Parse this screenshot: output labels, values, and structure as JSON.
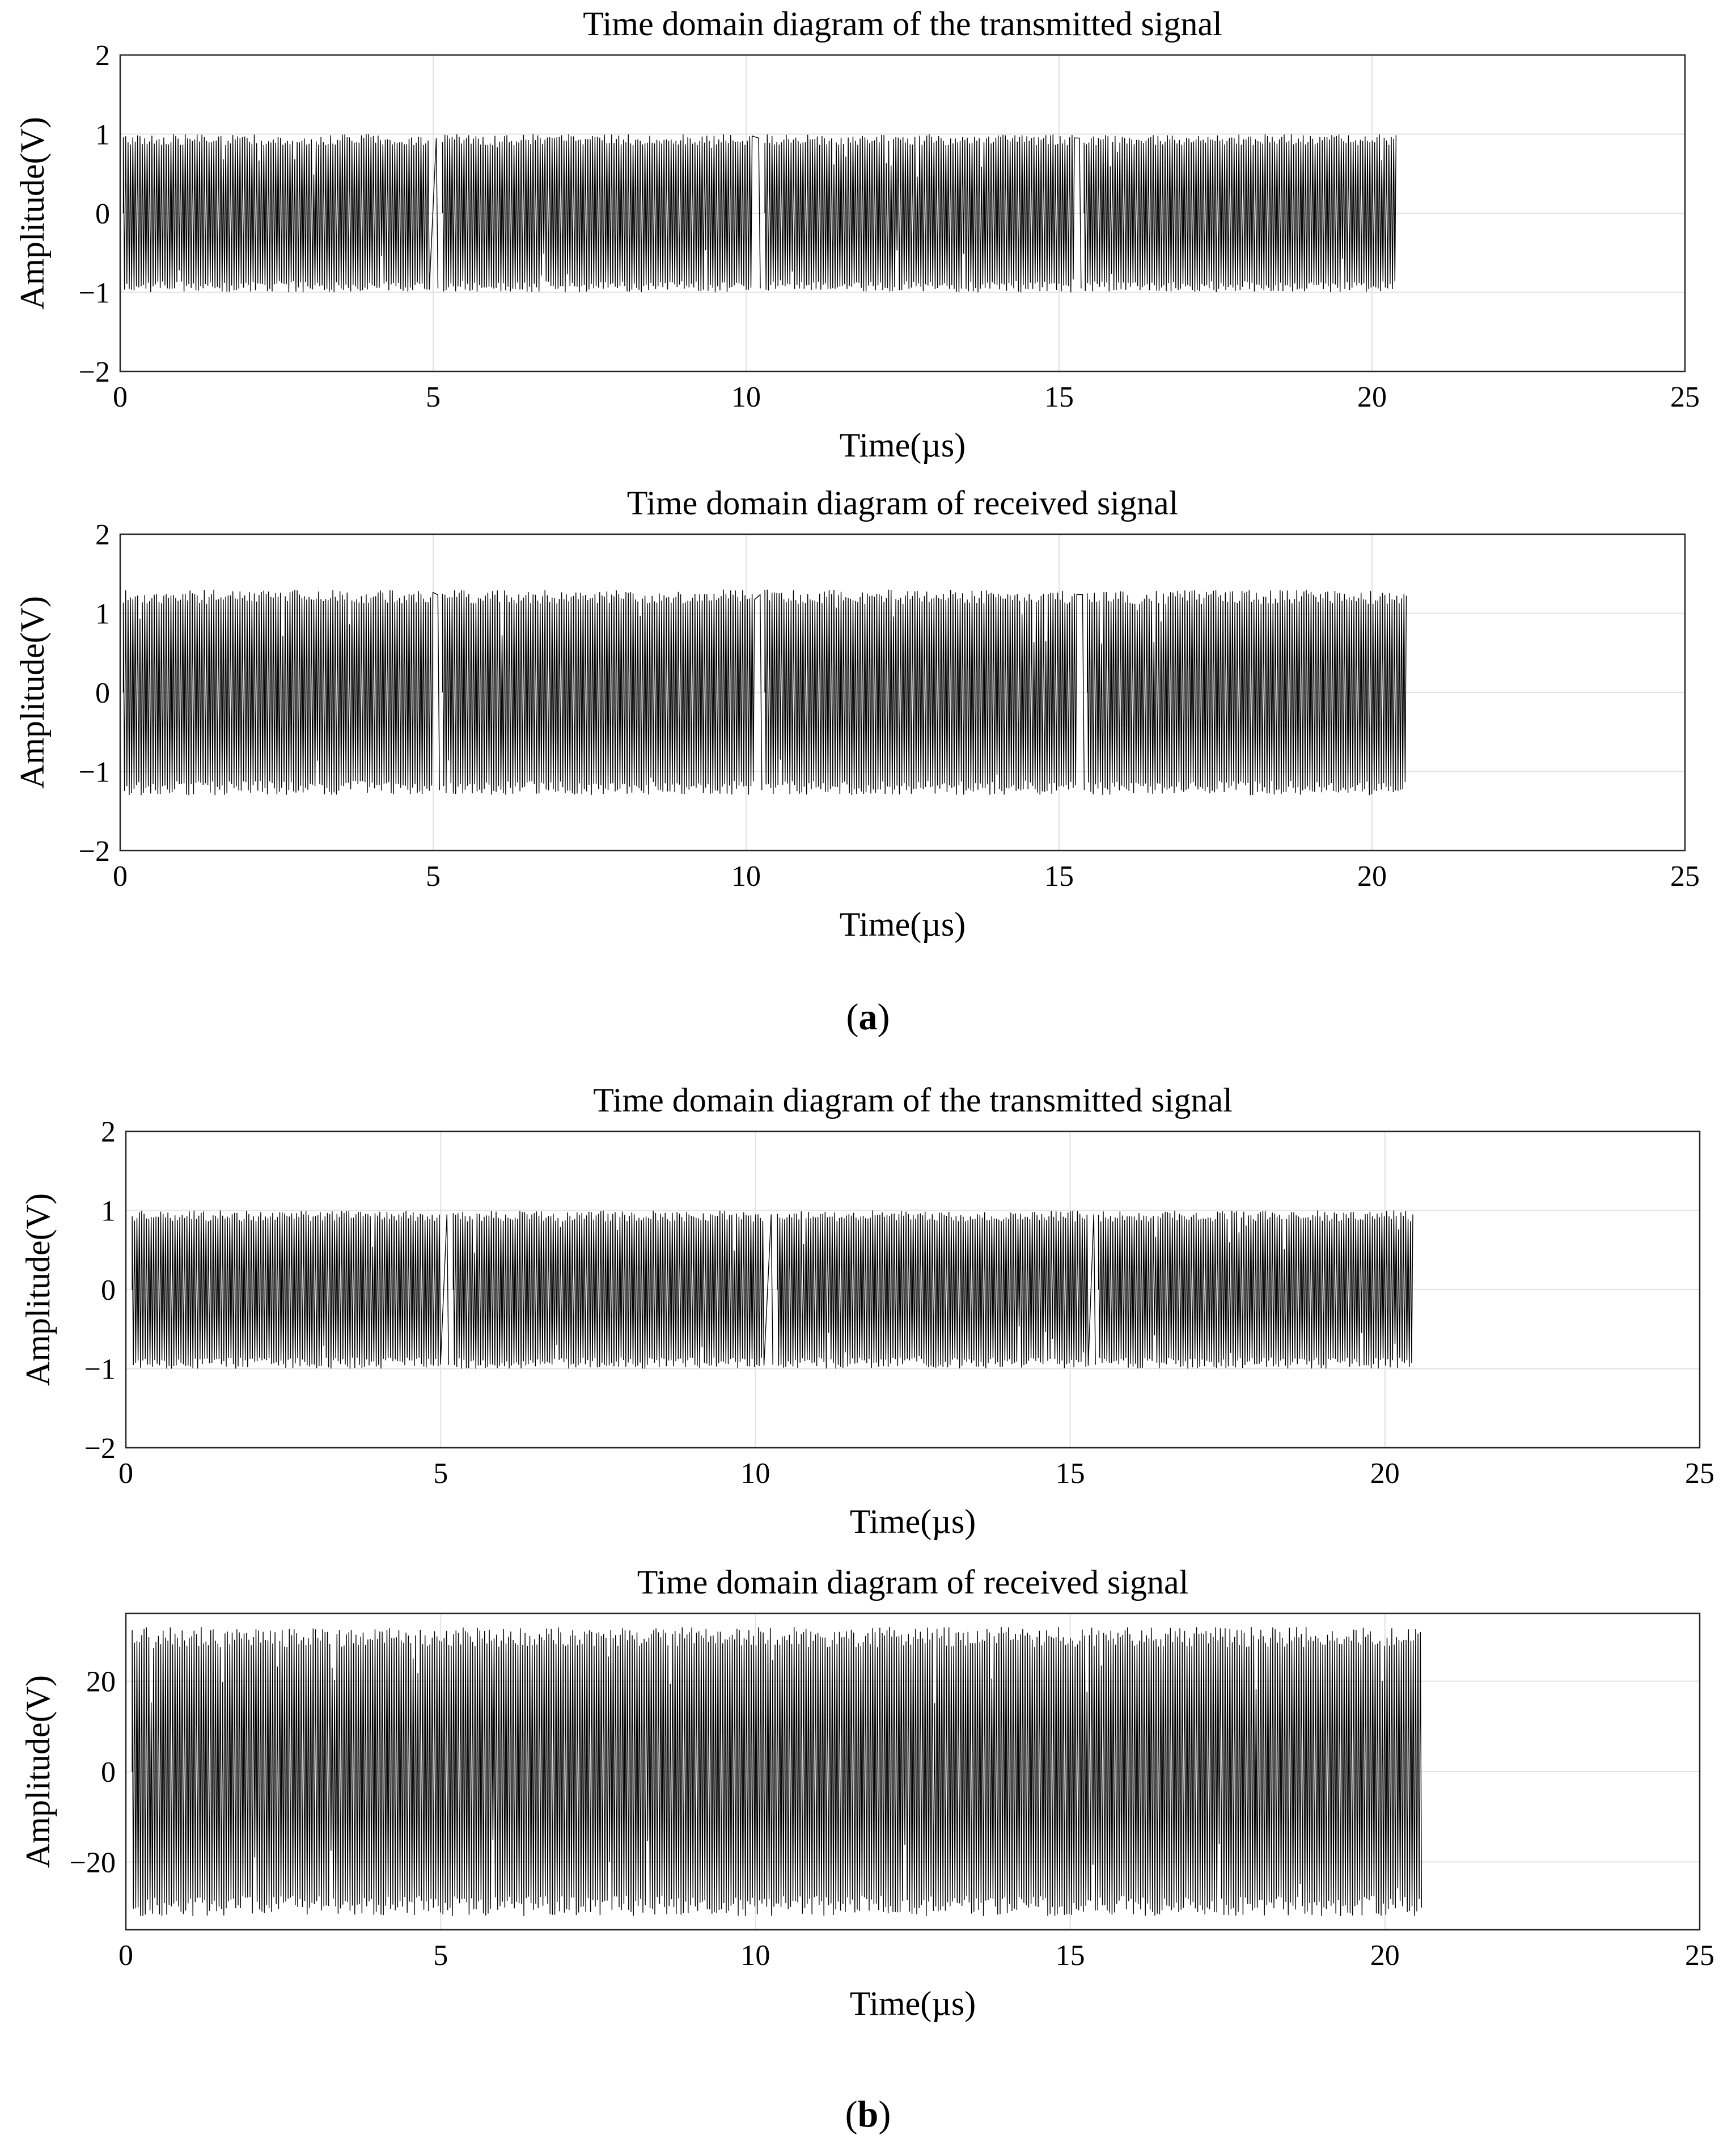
{
  "figure": {
    "caption_a": {
      "open": "(",
      "letter": "a",
      "close": ")"
    },
    "caption_b": {
      "open": "(",
      "letter": "b",
      "close": ")"
    }
  },
  "chart_data": [
    {
      "type": "line",
      "group": "a",
      "title": "Time domain diagram of the transmitted signal",
      "xlabel": "Time(µs)",
      "ylabel": "Amplitude(V)",
      "xlim": [
        0,
        25
      ],
      "ylim": [
        -2,
        2
      ],
      "xticks": [
        "0",
        "5",
        "10",
        "15",
        "20",
        "25"
      ],
      "yticks": [
        "2",
        "1",
        "0",
        "−1",
        "−2"
      ],
      "grid": true,
      "line_color": "#000000",
      "signal": {
        "amplitude": 1.0,
        "start": 0.05,
        "end": 20.4,
        "frames": [
          [
            0.05,
            4.95
          ],
          [
            5.15,
            10.1
          ],
          [
            10.3,
            15.25
          ],
          [
            15.4,
            20.4
          ]
        ]
      }
    },
    {
      "type": "line",
      "group": "a",
      "title": "Time domain diagram of received signal",
      "xlabel": "Time(µs)",
      "ylabel": "Amplitude(V)",
      "xlim": [
        0,
        25
      ],
      "ylim": [
        -2,
        2
      ],
      "xticks": [
        "0",
        "5",
        "10",
        "15",
        "20",
        "25"
      ],
      "yticks": [
        "2",
        "1",
        "0",
        "−1",
        "−2"
      ],
      "grid": true,
      "line_color": "#000000",
      "signal": {
        "amplitude": 1.3,
        "start": 0.05,
        "end": 20.55,
        "frames": [
          [
            0.05,
            5.0
          ],
          [
            5.15,
            10.15
          ],
          [
            10.3,
            15.3
          ],
          [
            15.45,
            20.55
          ]
        ]
      }
    },
    {
      "type": "line",
      "group": "b",
      "title": "Time domain diagram of the transmitted signal",
      "xlabel": "Time(µs)",
      "ylabel": "Amplitude(V)",
      "xlim": [
        0,
        25
      ],
      "ylim": [
        -2,
        2
      ],
      "xticks": [
        "0",
        "5",
        "10",
        "15",
        "20",
        "25"
      ],
      "yticks": [
        "2",
        "1",
        "0",
        "−1",
        "−2"
      ],
      "grid": true,
      "line_color": "#000000",
      "signal": {
        "amplitude": 1.0,
        "start": 0.05,
        "end": 20.45,
        "frames": [
          [
            0.1,
            5.0
          ],
          [
            5.2,
            10.15
          ],
          [
            10.35,
            15.3
          ],
          [
            15.45,
            20.45
          ]
        ]
      }
    },
    {
      "type": "line",
      "group": "b",
      "title": "Time domain diagram of received signal",
      "xlabel": "Time(µs)",
      "ylabel": "Amplitude(V)",
      "xlim": [
        0,
        25
      ],
      "ylim": [
        -35,
        35
      ],
      "xticks": [
        "0",
        "5",
        "10",
        "15",
        "20",
        "25"
      ],
      "yticks": [
        "20",
        "0",
        "−20"
      ],
      "grid": true,
      "line_color": "#000000",
      "signal": {
        "amplitude": 32,
        "start": 0.1,
        "end": 20.6,
        "frames": [
          [
            0.1,
            20.6
          ]
        ]
      }
    }
  ]
}
